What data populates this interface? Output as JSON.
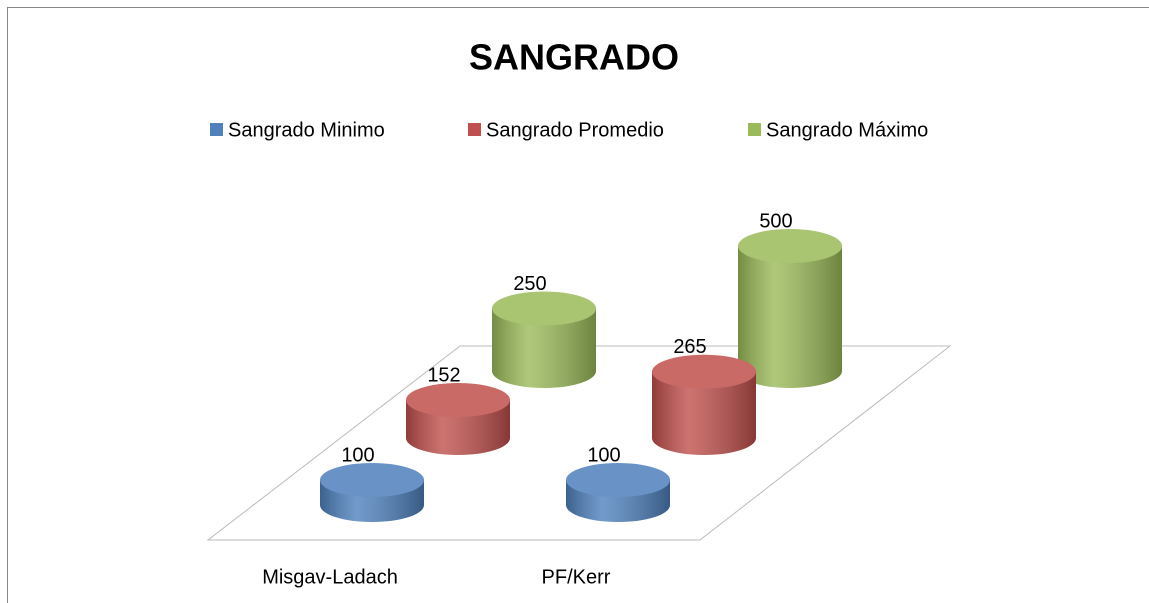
{
  "chart_data": {
    "type": "bar3d",
    "title": "SANGRADO",
    "categories": [
      "Misgav-Ladach",
      "PF/Kerr"
    ],
    "series": [
      {
        "name": "Sangrado Minimo",
        "color": "#4f81bd",
        "values": [
          100,
          100
        ]
      },
      {
        "name": "Sangrado Promedio",
        "color": "#c0504d",
        "values": [
          152,
          265
        ]
      },
      {
        "name": "Sangrado Máximo",
        "color": "#9bbb59",
        "values": [
          250,
          500
        ]
      }
    ],
    "legend": "top"
  }
}
